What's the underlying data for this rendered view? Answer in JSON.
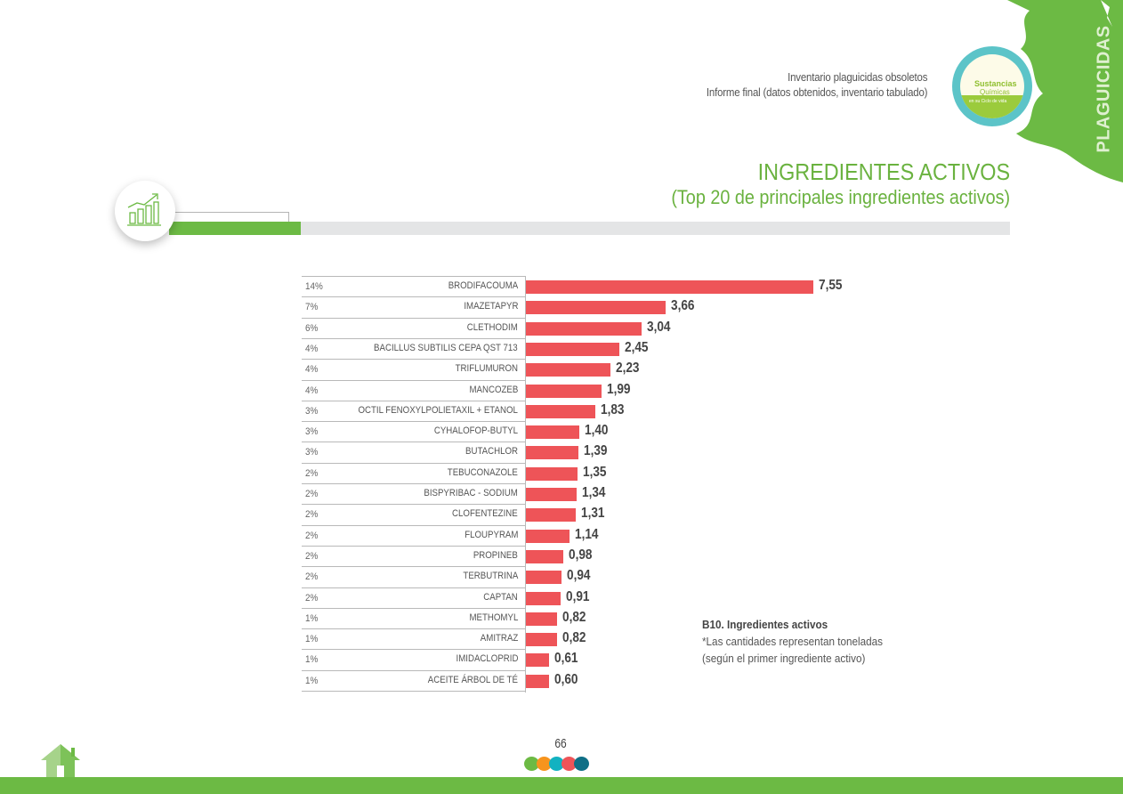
{
  "header": {
    "line1": "Inventario plaguicidas obsoletos",
    "line2": "Informe final (datos obtenidos, inventario tabulado)"
  },
  "section_tab": "PLAGUICIDAS",
  "logo": {
    "line1": "Sustancias",
    "line2": "Químicas",
    "line3": "en su Ciclo de vida"
  },
  "title": {
    "main": "INGREDIENTES ACTIVOS",
    "sub": "(Top 20 de principales ingredientes activos)"
  },
  "colors": {
    "accent_green": "#6cba44",
    "bar_red": "#ee5458",
    "title_green": "#6ab23f"
  },
  "caption": {
    "title": "B10. Ingredientes activos",
    "note1": "*Las cantidades representan toneladas",
    "note2": "(según el primer ingrediente activo)"
  },
  "footer": {
    "page_number": "66",
    "dots": [
      "#6cba44",
      "#f7941d",
      "#12b2c1",
      "#ee5458",
      "#0f6f86"
    ]
  },
  "chart_data": {
    "type": "bar",
    "orientation": "horizontal",
    "title": "INGREDIENTES ACTIVOS (Top 20 de principales ingredientes activos)",
    "xlabel": "Toneladas",
    "ylabel": "",
    "xlim": [
      0,
      7.55
    ],
    "grid": false,
    "categories": [
      "BRODIFACOUMA",
      "IMAZETAPYR",
      "CLETHODIM",
      "BACILLUS SUBTILIS CEPA QST 713",
      "TRIFLUMURON",
      "MANCOZEB",
      "OCTIL FENOXYLPOLIETAXIL + ETANOL",
      "CYHALOFOP-BUTYL",
      "BUTACHLOR",
      "TEBUCONAZOLE",
      "BISPYRIBAC - SODIUM",
      "CLOFENTEZINE",
      "FLOUPYRAM",
      "PROPINEB",
      "TERBUTRINA",
      "CAPTAN",
      "METHOMYL",
      "AMITRAZ",
      "IMIDACLOPRID",
      "ACEITE ÁRBOL DE TÉ"
    ],
    "values": [
      7.55,
      3.66,
      3.04,
      2.45,
      2.23,
      1.99,
      1.83,
      1.4,
      1.39,
      1.35,
      1.34,
      1.31,
      1.14,
      0.98,
      0.94,
      0.91,
      0.82,
      0.82,
      0.61,
      0.6
    ],
    "value_labels": [
      "7,55",
      "3,66",
      "3,04",
      "2,45",
      "2,23",
      "1,99",
      "1,83",
      "1,40",
      "1,39",
      "1,35",
      "1,34",
      "1,31",
      "1,14",
      "0,98",
      "0,94",
      "0,91",
      "0,82",
      "0,82",
      "0,61",
      "0,60"
    ],
    "percentages": [
      "14%",
      "7%",
      "6%",
      "4%",
      "4%",
      "4%",
      "3%",
      "3%",
      "3%",
      "2%",
      "2%",
      "2%",
      "2%",
      "2%",
      "2%",
      "2%",
      "1%",
      "1%",
      "1%",
      "1%"
    ]
  }
}
